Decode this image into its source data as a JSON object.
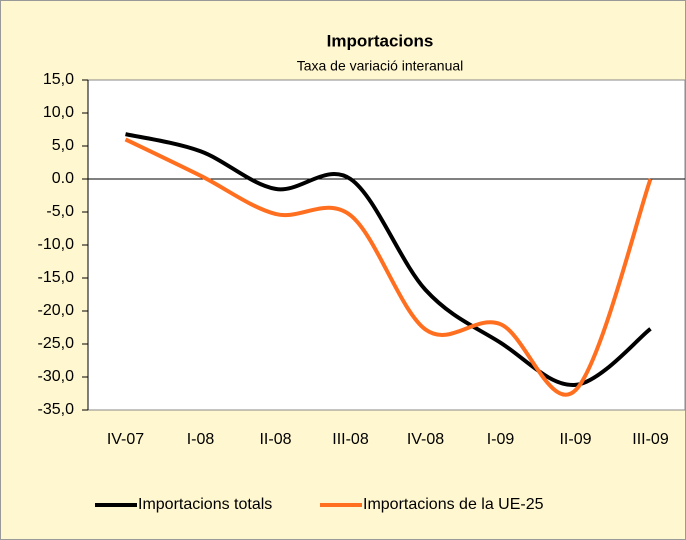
{
  "chart_data": {
    "type": "line",
    "title": "Importacions",
    "subtitle": "Taxa de variació interanual",
    "categories": [
      "IV-07",
      "I-08",
      "II-08",
      "III-08",
      "IV-08",
      "I-09",
      "II-09",
      "III-09"
    ],
    "series": [
      {
        "name": "Importacions totals",
        "color": "#000000",
        "values": [
          6.8,
          4.2,
          -1.5,
          0.0,
          -16.8,
          -24.8,
          -31.2,
          -22.7
        ]
      },
      {
        "name": "Importacions de la UE-25",
        "color": "#ff6f1f",
        "values": [
          6.0,
          0.5,
          -5.3,
          -5.5,
          -22.8,
          -22.0,
          -32.0,
          0.0
        ]
      }
    ],
    "ylim": [
      -35,
      15
    ],
    "yticks": [
      {
        "value": 15,
        "label": "15,0"
      },
      {
        "value": 10,
        "label": "10,0"
      },
      {
        "value": 5,
        "label": "5,0"
      },
      {
        "value": 0,
        "label": "0.0"
      },
      {
        "value": -5,
        "label": "-5,0"
      },
      {
        "value": -10,
        "label": "-10,0"
      },
      {
        "value": -15,
        "label": "-15,0"
      },
      {
        "value": -20,
        "label": "-20,0"
      },
      {
        "value": -25,
        "label": "-25,0"
      },
      {
        "value": -30,
        "label": "-30,0"
      },
      {
        "value": -35,
        "label": "-35,0"
      }
    ],
    "grid": false,
    "legend": "bottom"
  }
}
